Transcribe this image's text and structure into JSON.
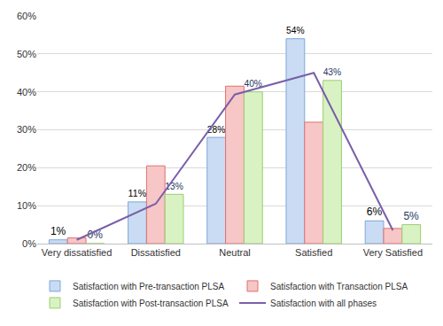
{
  "chart_data": {
    "type": "bar",
    "categories": [
      "Very dissatisfied",
      "Dissatisfied",
      "Neutral",
      "Satisfied",
      "Very Satisfied"
    ],
    "series": [
      {
        "name": "Satisfaction with Pre-transaction PLSA",
        "type": "bar",
        "color": "#c9dcf3",
        "values": [
          1,
          11,
          28,
          54,
          6
        ],
        "value_labels": [
          "1%",
          "11%",
          "28%",
          "54%",
          "6%"
        ],
        "data_labels": true
      },
      {
        "name": "Satisfaction with Transaction PLSA",
        "type": "bar",
        "color": "#f7c6c6",
        "values": [
          1.5,
          20.5,
          41.5,
          32,
          4
        ]
      },
      {
        "name": "Satisfaction with Post-transaction PLSA",
        "type": "bar",
        "color": "#d9f2c4",
        "values": [
          0,
          13,
          40,
          43,
          5
        ],
        "value_labels": [
          "0%",
          "13%",
          "40%",
          "43%",
          "5%"
        ],
        "data_labels": true
      },
      {
        "name": "Satisfaction with all phases",
        "type": "line",
        "color": "#7a5fa8",
        "values": [
          1,
          10.5,
          39.3,
          45,
          3.5
        ]
      }
    ],
    "ylim": [
      0,
      60
    ],
    "yticks": [
      {
        "value": 0,
        "label": "0%"
      },
      {
        "value": 10,
        "label": "10%"
      },
      {
        "value": 20,
        "label": "20%"
      },
      {
        "value": 30,
        "label": "30%"
      },
      {
        "value": 40,
        "label": "40%"
      },
      {
        "value": 50,
        "label": "50%"
      },
      {
        "value": 60,
        "label": "60%"
      }
    ],
    "grid": true,
    "legend": "bottom"
  }
}
